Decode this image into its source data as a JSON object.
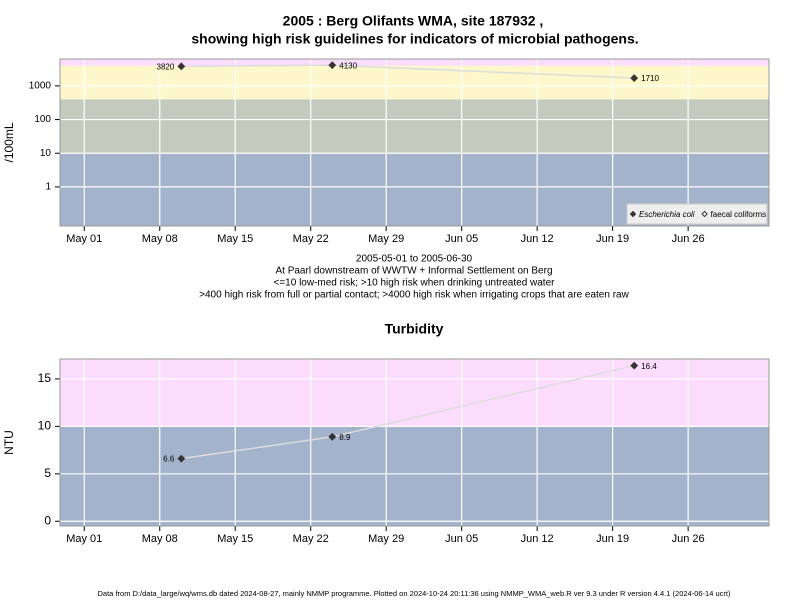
{
  "chart_data": [
    {
      "type": "line",
      "title": "2005 : Berg Olifants WMA, site 187932 ,",
      "title_line2": "showing high risk guidelines for indicators of microbial pathogens.",
      "subtitle": [
        "2005-05-01 to 2005-06-30",
        "At Paarl downstream of WWTW + Informal Settlement on Berg",
        "<=10 low-med risk; >10 high risk when drinking untreated water",
        ">400 high risk from full or partial contact; >4000 high risk when irrigating crops that are eaten raw"
      ],
      "ylabel": "/100mL",
      "log": true,
      "x": [
        "May 10",
        "May 24",
        "Jun 21"
      ],
      "xlim": [
        "Apr 28 18:00",
        "Jul 03 12:00"
      ],
      "xticks": [
        "May 01",
        "May 08",
        "May 15",
        "May 22",
        "May 29",
        "Jun 05",
        "Jun 12",
        "Jun 19",
        "Jun 26"
      ],
      "ylim": [
        0.069,
        6300
      ],
      "yticks": [
        1,
        10,
        100,
        1000
      ],
      "grid": true,
      "bands": [
        {
          "from": 0.069,
          "to": 10,
          "color": "#a3b3cb"
        },
        {
          "from": 10,
          "to": 400,
          "color": "#c3cbbf"
        },
        {
          "from": 400,
          "to": 4000,
          "color": "#fdf7cb"
        },
        {
          "from": 4000,
          "to": 6300,
          "color": "#fcdcfc"
        }
      ],
      "line_color": "#dcdcdc",
      "legend": "lower right",
      "series": [
        {
          "name": "Escherichia coli",
          "color": "#333333",
          "marker": "filled-diamond",
          "values": [
            3820,
            4130,
            1710
          ]
        },
        {
          "name": "faecal coliforms",
          "color": "#333333",
          "marker": "open-diamond",
          "values": [
            null,
            null,
            null
          ]
        }
      ]
    },
    {
      "type": "line",
      "title": "Turbidity",
      "ylabel": "NTU",
      "log": false,
      "x": [
        "May 10",
        "May 24",
        "Jun 21"
      ],
      "xlim": [
        "Apr 28 18:00",
        "Jul 03 12:00"
      ],
      "xticks": [
        "May 01",
        "May 08",
        "May 15",
        "May 22",
        "May 29",
        "Jun 05",
        "Jun 12",
        "Jun 19",
        "Jun 26"
      ],
      "ylim": [
        -0.5,
        17.1
      ],
      "yticks": [
        0,
        5,
        10,
        15
      ],
      "grid": true,
      "bands": [
        {
          "from": -0.5,
          "to": 10,
          "color": "#a3b3cb"
        },
        {
          "from": 10,
          "to": 17.1,
          "color": "#fcdcfc"
        }
      ],
      "line_color": "#dcdcdc",
      "series": [
        {
          "name": "Turbidity",
          "color": "#333333",
          "marker": "filled-diamond",
          "values": [
            6.6,
            8.9,
            16.4
          ]
        }
      ]
    }
  ],
  "footer": "Data from D:/data_large/wq/wms.db dated 2024-08-27, mainly NMMP programme. Plotted on 2024-10-24 20:11:36 using NMMP_WMA_web.R ver 9.3 under R version 4.4.1 (2024-06-14 ucrt)"
}
